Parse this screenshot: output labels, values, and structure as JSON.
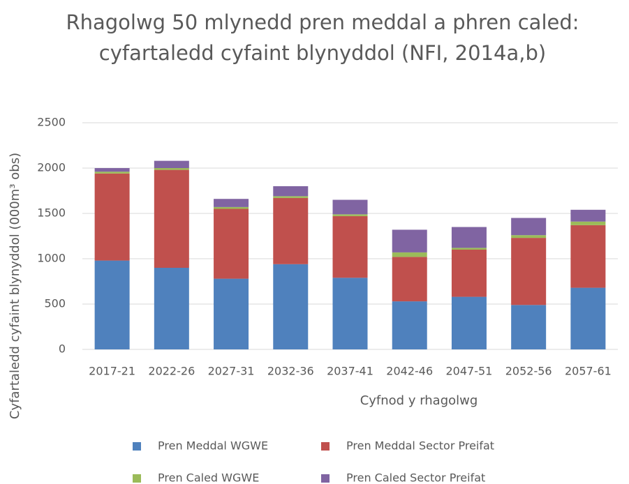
{
  "chart_data": {
    "type": "stacked_bar",
    "title": "Rhagolwg 50 mlynedd pren meddal a phren caled: cyfartaledd cyfaint blynyddol (NFI, 2014a,b)",
    "x_label": "Cyfnod y rhagolwg",
    "y_label": "Cyfartaledd cyfaint blynyddol (000m³ obs)",
    "categories": [
      "2017-21",
      "2022-26",
      "2027-31",
      "2032-36",
      "2037-41",
      "2042-46",
      "2047-51",
      "2052-56",
      "2057-61"
    ],
    "series": [
      {
        "name": "Pren Meddal WGWE",
        "color": "#4f81bd",
        "values": [
          980,
          900,
          780,
          940,
          790,
          530,
          580,
          490,
          680
        ]
      },
      {
        "name": "Pren Meddal Sector Preifat",
        "color": "#c0504d",
        "values": [
          960,
          1080,
          770,
          730,
          680,
          490,
          520,
          740,
          690
        ]
      },
      {
        "name": "Pren Caled WGWE",
        "color": "#9bbb59",
        "values": [
          20,
          20,
          20,
          20,
          20,
          50,
          20,
          30,
          40
        ]
      },
      {
        "name": "Pren Caled Sector Preifat",
        "color": "#8064a2",
        "values": [
          40,
          80,
          90,
          110,
          160,
          250,
          230,
          190,
          130
        ]
      }
    ],
    "ylim": [
      0,
      2500
    ],
    "yticks": [
      0,
      500,
      1000,
      1500,
      2000,
      2500
    ],
    "grid": true,
    "legend": "bottom"
  }
}
